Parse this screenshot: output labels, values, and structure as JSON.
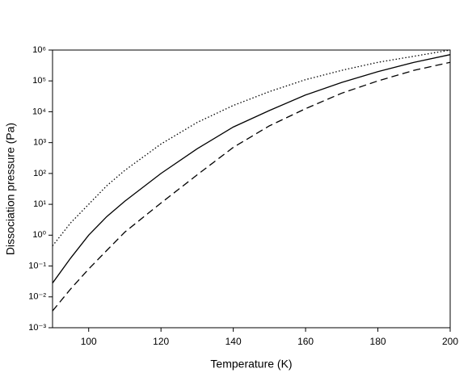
{
  "chart_data": {
    "type": "line",
    "x_label": "Temperature (K)",
    "y_label": "Dissociation pressure (Pa)",
    "x": [
      90,
      95,
      100,
      105,
      110,
      120,
      130,
      140,
      150,
      160,
      170,
      180,
      190,
      200
    ],
    "series": [
      {
        "color": "#000000",
        "line_style": "dotted",
        "values": [
          0.45,
          2.5,
          10,
          40,
          126,
          900,
          4500,
          16000,
          45000,
          110000,
          220000,
          400000,
          630000,
          1000000
        ]
      },
      {
        "color": "#000000",
        "line_style": "solid",
        "values": [
          0.028,
          0.18,
          1,
          4,
          12.6,
          100,
          630,
          3200,
          11000,
          35000,
          89000,
          200000,
          400000,
          710000
        ]
      },
      {
        "color": "#000000",
        "line_style": "dashed",
        "values": [
          0.0035,
          0.018,
          0.08,
          0.32,
          1.26,
          11,
          90,
          700,
          3500,
          12600,
          40000,
          100000,
          220000,
          400000
        ]
      }
    ],
    "xlim": [
      90,
      200
    ],
    "xticks": [
      100,
      120,
      140,
      160,
      180,
      200
    ],
    "ylim": [
      0.001,
      1000000
    ],
    "y_scale": "log",
    "yticks": [
      {
        "value": 0.001,
        "label": "10⁻³"
      },
      {
        "value": 0.01,
        "label": "10⁻²"
      },
      {
        "value": 0.1,
        "label": "10⁻¹"
      },
      {
        "value": 1,
        "label": "10⁰"
      },
      {
        "value": 10,
        "label": "10¹"
      },
      {
        "value": 100,
        "label": "10²"
      },
      {
        "value": 1000,
        "label": "10³"
      },
      {
        "value": 10000,
        "label": "10⁴"
      },
      {
        "value": 100000,
        "label": "10⁵"
      },
      {
        "value": 1000000,
        "label": "10⁶"
      }
    ]
  }
}
